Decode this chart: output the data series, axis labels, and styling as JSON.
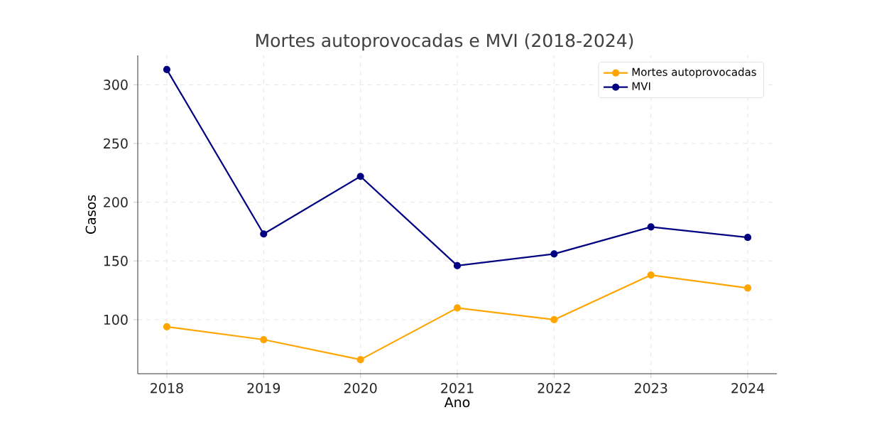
{
  "chart_data": {
    "type": "line",
    "title": "Mortes autoprovocadas e MVI (2018-2024)",
    "xlabel": "Ano",
    "ylabel": "Casos",
    "x": [
      2018,
      2019,
      2020,
      2021,
      2022,
      2023,
      2024
    ],
    "series": [
      {
        "name": "Mortes autoprovocadas",
        "color": "#ffa500",
        "values": [
          94,
          83,
          66,
          110,
          100,
          138,
          127
        ]
      },
      {
        "name": "MVI",
        "color": "#000080",
        "values": [
          313,
          173,
          222,
          146,
          156,
          179,
          170
        ]
      }
    ],
    "xlim": [
      2017.7,
      2024.3
    ],
    "ylim": [
      54,
      325
    ],
    "xticks": [
      2018,
      2019,
      2020,
      2021,
      2022,
      2023,
      2024
    ],
    "yticks": [
      100,
      150,
      200,
      250,
      300
    ],
    "grid": true,
    "legend": "top right",
    "marker": "circle",
    "line_style": "solid"
  }
}
